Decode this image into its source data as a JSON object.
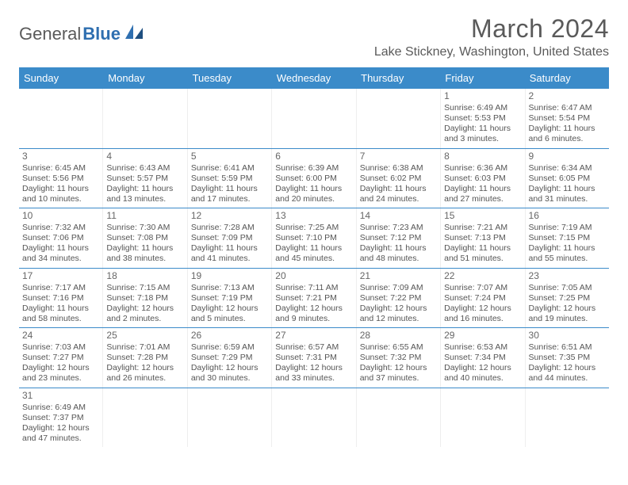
{
  "logo": {
    "text1": "General",
    "text2": "Blue"
  },
  "title": "March 2024",
  "location": "Lake Stickney, Washington, United States",
  "colors": {
    "header_bg": "#3b8bc9",
    "header_text": "#ffffff",
    "text": "#555555",
    "title_text": "#5a5a5a",
    "row_border": "#3b8bc9"
  },
  "typography": {
    "title_fontsize": 32,
    "location_fontsize": 16,
    "header_fontsize": 13,
    "cell_fontsize": 10.5,
    "daynum_fontsize": 12
  },
  "weekdays": [
    "Sunday",
    "Monday",
    "Tuesday",
    "Wednesday",
    "Thursday",
    "Friday",
    "Saturday"
  ],
  "weeks": [
    [
      null,
      null,
      null,
      null,
      null,
      {
        "n": "1",
        "sr": "Sunrise: 6:49 AM",
        "ss": "Sunset: 5:53 PM",
        "dl": "Daylight: 11 hours and 3 minutes."
      },
      {
        "n": "2",
        "sr": "Sunrise: 6:47 AM",
        "ss": "Sunset: 5:54 PM",
        "dl": "Daylight: 11 hours and 6 minutes."
      }
    ],
    [
      {
        "n": "3",
        "sr": "Sunrise: 6:45 AM",
        "ss": "Sunset: 5:56 PM",
        "dl": "Daylight: 11 hours and 10 minutes."
      },
      {
        "n": "4",
        "sr": "Sunrise: 6:43 AM",
        "ss": "Sunset: 5:57 PM",
        "dl": "Daylight: 11 hours and 13 minutes."
      },
      {
        "n": "5",
        "sr": "Sunrise: 6:41 AM",
        "ss": "Sunset: 5:59 PM",
        "dl": "Daylight: 11 hours and 17 minutes."
      },
      {
        "n": "6",
        "sr": "Sunrise: 6:39 AM",
        "ss": "Sunset: 6:00 PM",
        "dl": "Daylight: 11 hours and 20 minutes."
      },
      {
        "n": "7",
        "sr": "Sunrise: 6:38 AM",
        "ss": "Sunset: 6:02 PM",
        "dl": "Daylight: 11 hours and 24 minutes."
      },
      {
        "n": "8",
        "sr": "Sunrise: 6:36 AM",
        "ss": "Sunset: 6:03 PM",
        "dl": "Daylight: 11 hours and 27 minutes."
      },
      {
        "n": "9",
        "sr": "Sunrise: 6:34 AM",
        "ss": "Sunset: 6:05 PM",
        "dl": "Daylight: 11 hours and 31 minutes."
      }
    ],
    [
      {
        "n": "10",
        "sr": "Sunrise: 7:32 AM",
        "ss": "Sunset: 7:06 PM",
        "dl": "Daylight: 11 hours and 34 minutes."
      },
      {
        "n": "11",
        "sr": "Sunrise: 7:30 AM",
        "ss": "Sunset: 7:08 PM",
        "dl": "Daylight: 11 hours and 38 minutes."
      },
      {
        "n": "12",
        "sr": "Sunrise: 7:28 AM",
        "ss": "Sunset: 7:09 PM",
        "dl": "Daylight: 11 hours and 41 minutes."
      },
      {
        "n": "13",
        "sr": "Sunrise: 7:25 AM",
        "ss": "Sunset: 7:10 PM",
        "dl": "Daylight: 11 hours and 45 minutes."
      },
      {
        "n": "14",
        "sr": "Sunrise: 7:23 AM",
        "ss": "Sunset: 7:12 PM",
        "dl": "Daylight: 11 hours and 48 minutes."
      },
      {
        "n": "15",
        "sr": "Sunrise: 7:21 AM",
        "ss": "Sunset: 7:13 PM",
        "dl": "Daylight: 11 hours and 51 minutes."
      },
      {
        "n": "16",
        "sr": "Sunrise: 7:19 AM",
        "ss": "Sunset: 7:15 PM",
        "dl": "Daylight: 11 hours and 55 minutes."
      }
    ],
    [
      {
        "n": "17",
        "sr": "Sunrise: 7:17 AM",
        "ss": "Sunset: 7:16 PM",
        "dl": "Daylight: 11 hours and 58 minutes."
      },
      {
        "n": "18",
        "sr": "Sunrise: 7:15 AM",
        "ss": "Sunset: 7:18 PM",
        "dl": "Daylight: 12 hours and 2 minutes."
      },
      {
        "n": "19",
        "sr": "Sunrise: 7:13 AM",
        "ss": "Sunset: 7:19 PM",
        "dl": "Daylight: 12 hours and 5 minutes."
      },
      {
        "n": "20",
        "sr": "Sunrise: 7:11 AM",
        "ss": "Sunset: 7:21 PM",
        "dl": "Daylight: 12 hours and 9 minutes."
      },
      {
        "n": "21",
        "sr": "Sunrise: 7:09 AM",
        "ss": "Sunset: 7:22 PM",
        "dl": "Daylight: 12 hours and 12 minutes."
      },
      {
        "n": "22",
        "sr": "Sunrise: 7:07 AM",
        "ss": "Sunset: 7:24 PM",
        "dl": "Daylight: 12 hours and 16 minutes."
      },
      {
        "n": "23",
        "sr": "Sunrise: 7:05 AM",
        "ss": "Sunset: 7:25 PM",
        "dl": "Daylight: 12 hours and 19 minutes."
      }
    ],
    [
      {
        "n": "24",
        "sr": "Sunrise: 7:03 AM",
        "ss": "Sunset: 7:27 PM",
        "dl": "Daylight: 12 hours and 23 minutes."
      },
      {
        "n": "25",
        "sr": "Sunrise: 7:01 AM",
        "ss": "Sunset: 7:28 PM",
        "dl": "Daylight: 12 hours and 26 minutes."
      },
      {
        "n": "26",
        "sr": "Sunrise: 6:59 AM",
        "ss": "Sunset: 7:29 PM",
        "dl": "Daylight: 12 hours and 30 minutes."
      },
      {
        "n": "27",
        "sr": "Sunrise: 6:57 AM",
        "ss": "Sunset: 7:31 PM",
        "dl": "Daylight: 12 hours and 33 minutes."
      },
      {
        "n": "28",
        "sr": "Sunrise: 6:55 AM",
        "ss": "Sunset: 7:32 PM",
        "dl": "Daylight: 12 hours and 37 minutes."
      },
      {
        "n": "29",
        "sr": "Sunrise: 6:53 AM",
        "ss": "Sunset: 7:34 PM",
        "dl": "Daylight: 12 hours and 40 minutes."
      },
      {
        "n": "30",
        "sr": "Sunrise: 6:51 AM",
        "ss": "Sunset: 7:35 PM",
        "dl": "Daylight: 12 hours and 44 minutes."
      }
    ],
    [
      {
        "n": "31",
        "sr": "Sunrise: 6:49 AM",
        "ss": "Sunset: 7:37 PM",
        "dl": "Daylight: 12 hours and 47 minutes."
      },
      null,
      null,
      null,
      null,
      null,
      null
    ]
  ]
}
